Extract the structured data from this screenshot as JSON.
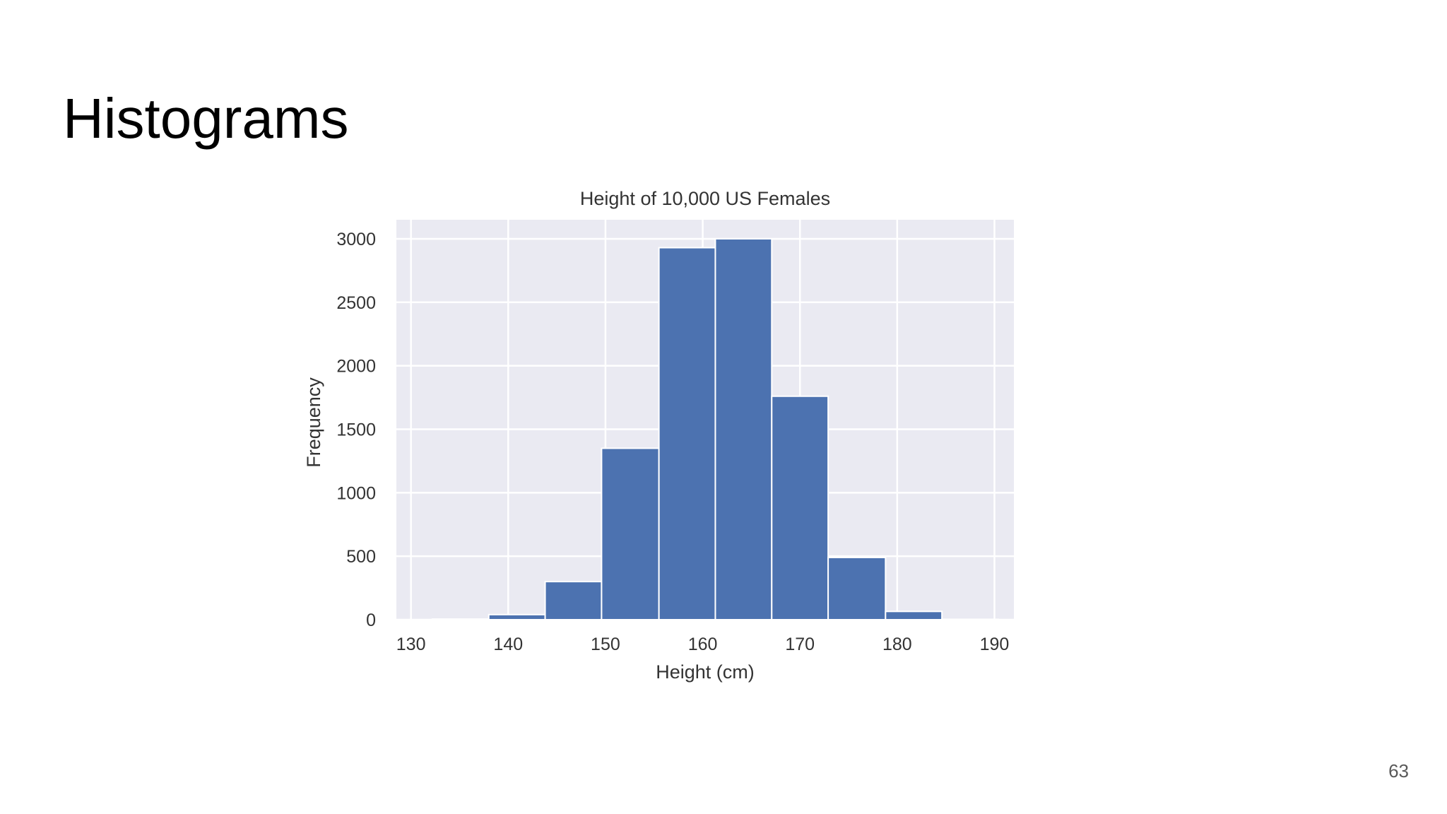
{
  "slide": {
    "title": "Histograms",
    "page_number": "63"
  },
  "chart_data": {
    "type": "bar",
    "title": "Height of 10,000 US Females",
    "xlabel": "Height (cm)",
    "ylabel": "Frequency",
    "xlim": [
      128.5,
      192
    ],
    "ylim": [
      0,
      3150
    ],
    "xticks": [
      130,
      140,
      150,
      160,
      170,
      180,
      190
    ],
    "yticks": [
      0,
      500,
      1000,
      1500,
      2000,
      2500,
      3000
    ],
    "grid": true,
    "bins": [
      {
        "x0": 132.2,
        "x1": 138.0,
        "value": 5
      },
      {
        "x0": 138.0,
        "x1": 143.8,
        "value": 40
      },
      {
        "x0": 143.8,
        "x1": 149.6,
        "value": 300
      },
      {
        "x0": 149.6,
        "x1": 155.5,
        "value": 1350
      },
      {
        "x0": 155.5,
        "x1": 161.3,
        "value": 2930
      },
      {
        "x0": 161.3,
        "x1": 167.1,
        "value": 3000
      },
      {
        "x0": 167.1,
        "x1": 172.9,
        "value": 1760
      },
      {
        "x0": 172.9,
        "x1": 178.8,
        "value": 490
      },
      {
        "x0": 178.8,
        "x1": 184.6,
        "value": 65
      },
      {
        "x0": 184.6,
        "x1": 190.4,
        "value": 3
      }
    ],
    "colors": {
      "bar": "#4c72b0",
      "plot_background": "#eaeaf2",
      "grid": "#ffffff",
      "text": "#333333"
    }
  }
}
